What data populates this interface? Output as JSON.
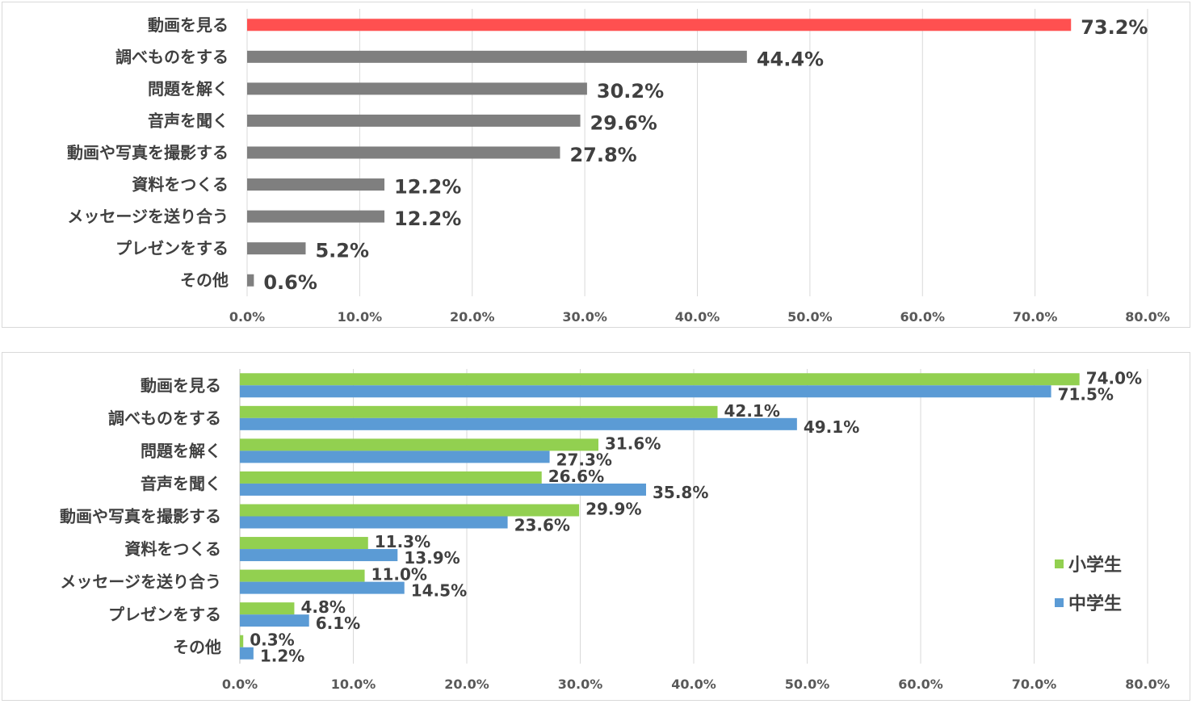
{
  "chart_data": [
    {
      "type": "bar",
      "orientation": "horizontal",
      "title": "",
      "categories": [
        "動画を見る",
        "調べものをする",
        "問題を解く",
        "音声を聞く",
        "動画や写真を撮影する",
        "資料をつくる",
        "メッセージを送り合う",
        "プレゼンをする",
        "その他"
      ],
      "values": [
        73.2,
        44.4,
        30.2,
        29.6,
        27.8,
        12.2,
        12.2,
        5.2,
        0.6
      ],
      "value_labels": [
        "73.2%",
        "44.4%",
        "30.2%",
        "29.6%",
        "27.8%",
        "12.2%",
        "12.2%",
        "5.2%",
        "0.6%"
      ],
      "xlim": [
        0,
        80
      ],
      "xticks": [
        "0.0%",
        "10.0%",
        "20.0%",
        "30.0%",
        "40.0%",
        "50.0%",
        "60.0%",
        "70.0%",
        "80.0%"
      ],
      "highlight_color": "#ff5050",
      "bar_color": "#7f7f7f",
      "grid": true
    },
    {
      "type": "bar",
      "orientation": "horizontal",
      "title": "",
      "categories": [
        "動画を見る",
        "調べものをする",
        "問題を解く",
        "音声を聞く",
        "動画や写真を撮影する",
        "資料をつくる",
        "メッセージを送り合う",
        "プレゼンをする",
        "その他"
      ],
      "series": [
        {
          "name": "小学生",
          "color": "#92d050",
          "values": [
            74.0,
            42.1,
            31.6,
            26.6,
            29.9,
            11.3,
            11.0,
            4.8,
            0.3
          ],
          "value_labels": [
            "74.0%",
            "42.1%",
            "31.6%",
            "26.6%",
            "29.9%",
            "11.3%",
            "11.0%",
            "4.8%",
            "0.3%"
          ]
        },
        {
          "name": "中学生",
          "color": "#5b9bd5",
          "values": [
            71.5,
            49.1,
            27.3,
            35.8,
            23.6,
            13.9,
            14.5,
            6.1,
            1.2
          ],
          "value_labels": [
            "71.5%",
            "49.1%",
            "27.3%",
            "35.8%",
            "23.6%",
            "13.9%",
            "14.5%",
            "6.1%",
            "1.2%"
          ]
        }
      ],
      "xlim": [
        0,
        80
      ],
      "xticks": [
        "0.0%",
        "10.0%",
        "20.0%",
        "30.0%",
        "40.0%",
        "50.0%",
        "60.0%",
        "70.0%",
        "80.0%"
      ],
      "legend": "right",
      "grid": true
    }
  ]
}
